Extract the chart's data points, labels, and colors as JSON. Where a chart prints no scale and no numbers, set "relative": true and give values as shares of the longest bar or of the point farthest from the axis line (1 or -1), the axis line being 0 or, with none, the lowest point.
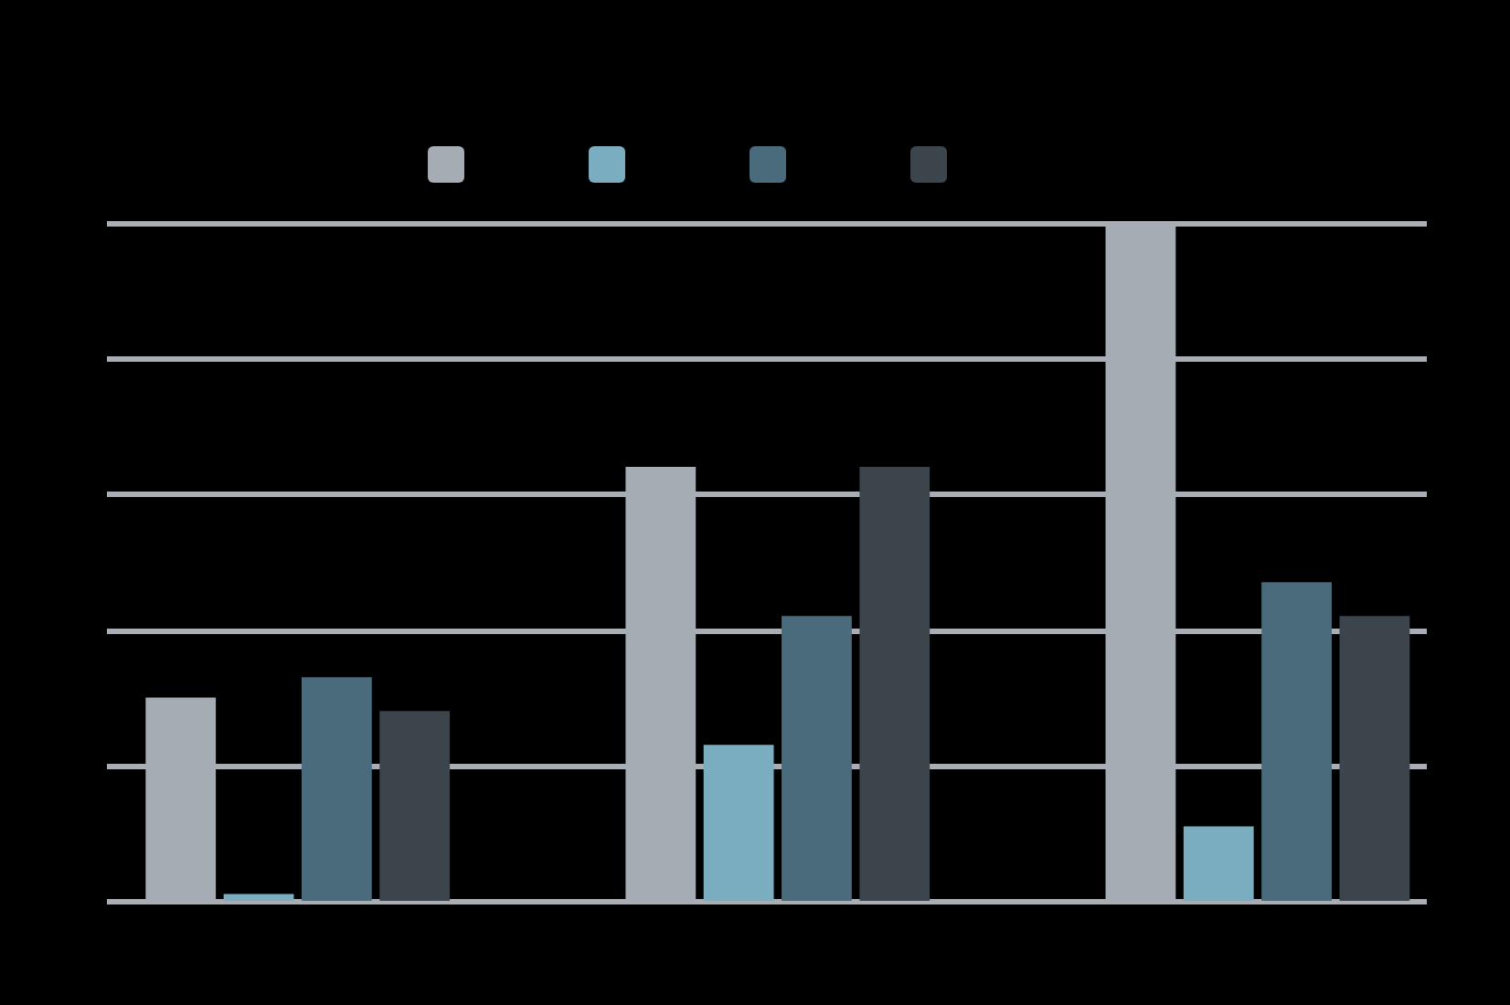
{
  "chart_data": {
    "type": "bar",
    "relative": true,
    "categories": [
      null,
      null,
      null
    ],
    "series": [
      {
        "color": "#a5acb3",
        "values": [
          0.3,
          0.64,
          1
        ]
      },
      {
        "color": "#7aadc0",
        "values": [
          0.01,
          0.23,
          0.11
        ]
      },
      {
        "color": "#4a6b7b",
        "values": [
          0.33,
          0.42,
          0.47
        ]
      },
      {
        "color": "#3d454c",
        "values": [
          0.28,
          0.64,
          0.42
        ]
      }
    ],
    "grid": "y"
  }
}
